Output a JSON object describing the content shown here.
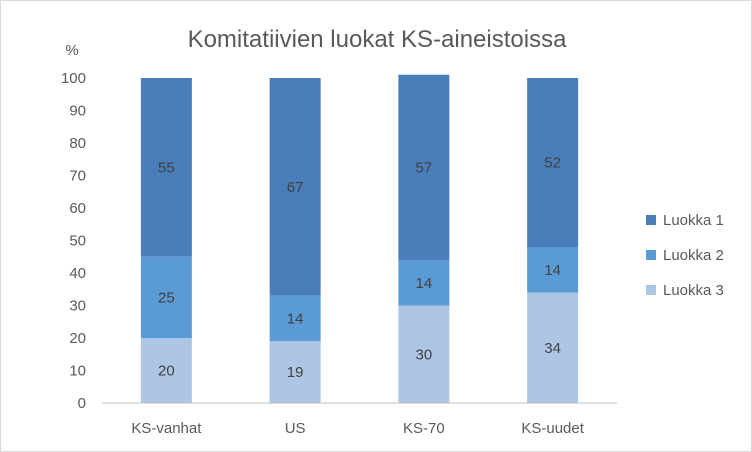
{
  "chart_data": {
    "type": "bar",
    "stacked": true,
    "title": "Komitatiivien luokat KS-aineistoissa",
    "ylabel": "%",
    "xlabel": "",
    "ylim": [
      0,
      100
    ],
    "yticks": [
      0,
      10,
      20,
      30,
      40,
      50,
      60,
      70,
      80,
      90,
      100
    ],
    "grid": false,
    "legend_position": "right",
    "categories": [
      "KS-vanhat",
      "US",
      "KS-70",
      "KS-uudet"
    ],
    "series": [
      {
        "name": "Luokka 3",
        "values": [
          20,
          19,
          30,
          34
        ],
        "color": "#aec6e6"
      },
      {
        "name": "Luokka 2",
        "values": [
          25,
          14,
          14,
          14
        ],
        "color": "#5b9bd5"
      },
      {
        "name": "Luokka 1",
        "values": [
          55,
          67,
          57,
          52
        ],
        "color": "#4a7ebb"
      }
    ],
    "legend_order": [
      "Luokka 1",
      "Luokka 2",
      "Luokka 3"
    ]
  }
}
